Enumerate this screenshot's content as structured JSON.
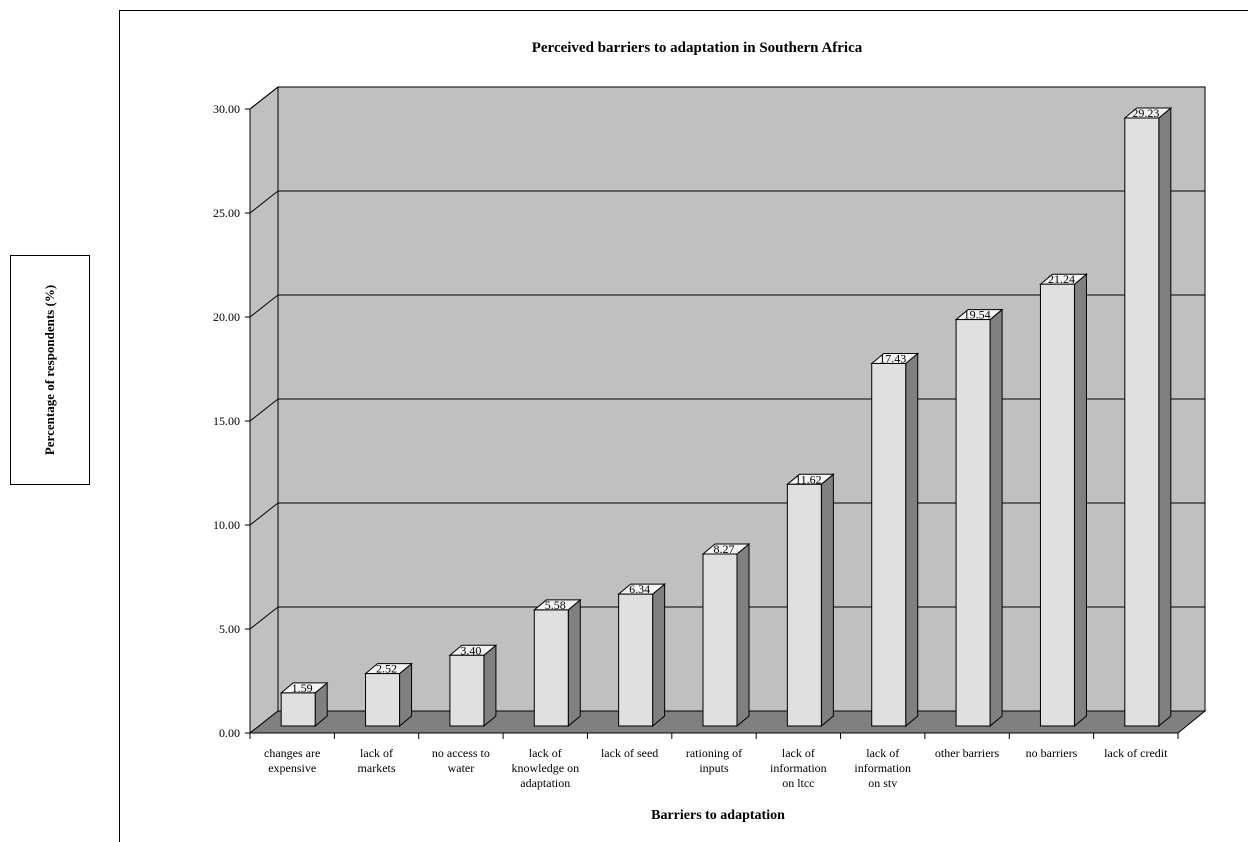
{
  "chart_data": {
    "type": "bar",
    "title": "Perceived barriers to adaptation in Southern Africa",
    "xlabel": "Barriers to adaptation",
    "ylabel": "Percentage of respondents (%)",
    "ylim": [
      0,
      30
    ],
    "yticks": [
      "0.00",
      "5.00",
      "10.00",
      "15.00",
      "20.00",
      "25.00",
      "30.00"
    ],
    "grid": true,
    "style": "3d",
    "categories": [
      [
        "changes are",
        "expensive"
      ],
      [
        "lack of",
        "markets"
      ],
      [
        "no access to",
        "water"
      ],
      [
        "lack of",
        "knowledge on",
        "adaptation"
      ],
      [
        "lack of seed"
      ],
      [
        "rationing of",
        "inputs"
      ],
      [
        "lack of",
        "information",
        "on ltcc"
      ],
      [
        "lack of",
        "information",
        "on stv"
      ],
      [
        "other barriers"
      ],
      [
        "no barriers"
      ],
      [
        "lack of credit"
      ]
    ],
    "values": [
      1.59,
      2.52,
      3.4,
      5.58,
      6.34,
      8.27,
      11.62,
      17.43,
      19.54,
      21.24,
      29.23
    ],
    "value_labels": [
      "1.59",
      "2.52",
      "3.40",
      "5.58",
      "6.34",
      "8.27",
      "11.62",
      "17.43",
      "19.54",
      "21.24",
      "29.23"
    ],
    "colors": {
      "wall": "#c0c0c0",
      "floor": "#808080",
      "bar_front": "#e0e0e0",
      "bar_side": "#808080",
      "bar_top": "#f4f4f4"
    }
  }
}
